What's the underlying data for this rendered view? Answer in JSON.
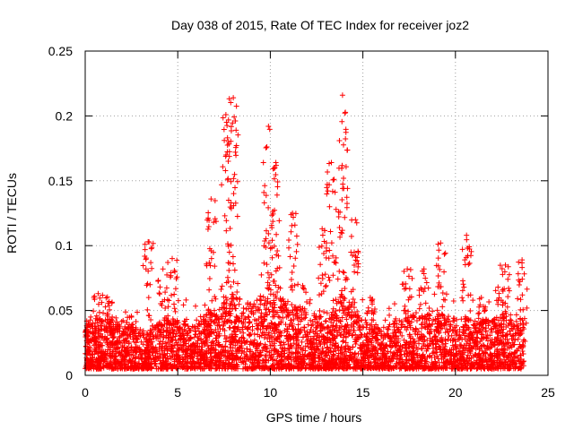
{
  "chart_data": {
    "type": "scatter",
    "title": "Day 038 of 2015, Rate Of TEC Index for receiver joz2",
    "xlabel": "GPS time / hours",
    "ylabel": "ROTI / TECUs",
    "xlim": [
      0,
      25
    ],
    "ylim": [
      0,
      0.25
    ],
    "xticks": [
      0,
      5,
      10,
      15,
      20,
      25
    ],
    "xtick_labels": [
      "0",
      "5",
      "10",
      "15",
      "20",
      "25"
    ],
    "yticks": [
      0,
      0.05,
      0.1,
      0.15,
      0.2,
      0.25
    ],
    "ytick_labels": [
      "0",
      "0.05",
      "0.1",
      "0.15",
      "0.2",
      "0.25"
    ],
    "grid": true,
    "marker": "+",
    "series": [
      {
        "name": "ROTI",
        "color": "#ff0000",
        "baseline_profile": {
          "x": [
            0,
            1,
            2,
            3,
            4,
            5,
            6,
            7,
            8,
            9,
            10,
            11,
            12,
            13,
            14,
            15,
            16,
            17,
            18,
            19,
            20,
            21,
            22,
            23,
            23.7
          ],
          "y": [
            0.025,
            0.032,
            0.03,
            0.022,
            0.028,
            0.03,
            0.03,
            0.035,
            0.045,
            0.04,
            0.045,
            0.04,
            0.035,
            0.03,
            0.045,
            0.03,
            0.025,
            0.03,
            0.032,
            0.035,
            0.03,
            0.03,
            0.03,
            0.032,
            0.03
          ]
        },
        "peaks": [
          {
            "x": 0.3,
            "y": 0.045
          },
          {
            "x": 0.7,
            "y": 0.063
          },
          {
            "x": 1.3,
            "y": 0.057
          },
          {
            "x": 2.5,
            "y": 0.045
          },
          {
            "x": 3.4,
            "y": 0.103
          },
          {
            "x": 4.2,
            "y": 0.082
          },
          {
            "x": 4.7,
            "y": 0.09
          },
          {
            "x": 6.8,
            "y": 0.136
          },
          {
            "x": 7.6,
            "y": 0.201
          },
          {
            "x": 8.0,
            "y": 0.214
          },
          {
            "x": 9.9,
            "y": 0.192
          },
          {
            "x": 10.3,
            "y": 0.164
          },
          {
            "x": 11.2,
            "y": 0.125
          },
          {
            "x": 12.8,
            "y": 0.113
          },
          {
            "x": 13.3,
            "y": 0.164
          },
          {
            "x": 13.9,
            "y": 0.216
          },
          {
            "x": 14.6,
            "y": 0.12
          },
          {
            "x": 15.4,
            "y": 0.06
          },
          {
            "x": 17.4,
            "y": 0.082
          },
          {
            "x": 18.3,
            "y": 0.082
          },
          {
            "x": 19.2,
            "y": 0.102
          },
          {
            "x": 20.6,
            "y": 0.108
          },
          {
            "x": 21.4,
            "y": 0.06
          },
          {
            "x": 22.3,
            "y": 0.068
          },
          {
            "x": 22.7,
            "y": 0.085
          },
          {
            "x": 23.6,
            "y": 0.089
          }
        ],
        "x_range": [
          0,
          23.7
        ],
        "y_min": 0.005,
        "point_count": 4200
      }
    ]
  }
}
